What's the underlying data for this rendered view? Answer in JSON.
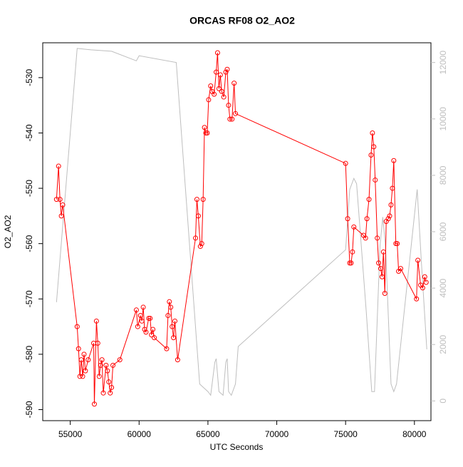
{
  "chart_data": {
    "type": "line",
    "title": "ORCAS RF08 O2_AO2",
    "xlabel": "UTC Seconds",
    "ylabel": "O2_AO2",
    "xlim": [
      53000,
      81200
    ],
    "xticks": [
      55000,
      60000,
      65000,
      70000,
      75000,
      80000
    ],
    "ylim": [
      -592,
      -523.7
    ],
    "yticks": [
      -590,
      -580,
      -570,
      -560,
      -550,
      -540,
      -530
    ],
    "y2lim": [
      -700,
      12700
    ],
    "y2ticks": [
      0,
      2000,
      4000,
      6000,
      8000,
      10000,
      12000
    ],
    "y2color": "#bebebe",
    "series": [
      {
        "color": "#bebebe",
        "axis": "y2",
        "markers": false,
        "x": [
          54000,
          55500,
          56500,
          58000,
          59800,
          60000,
          62700,
          64400,
          65000,
          65200,
          65500,
          65600,
          65800,
          66100,
          66300,
          66400,
          66500,
          66700,
          67000,
          67200,
          75000,
          75300,
          75600,
          75800,
          76500,
          76900,
          77100,
          77500,
          77700,
          77900,
          78300,
          78500,
          78700,
          80200,
          80500,
          80900
        ],
        "values": [
          3500,
          12500,
          12450,
          12400,
          12060,
          12240,
          12000,
          600,
          330,
          200,
          1370,
          1500,
          330,
          200,
          1370,
          1500,
          330,
          200,
          600,
          1930,
          5360,
          7500,
          7890,
          7700,
          3170,
          330,
          330,
          5490,
          6520,
          5490,
          600,
          330,
          600,
          7500,
          4970,
          1830
        ]
      },
      {
        "color": "#ff0000",
        "markers": true,
        "x": [
          54000,
          54150,
          54250,
          54350,
          54450,
          55500,
          55600,
          55700,
          55800,
          55900,
          56000,
          56100,
          56300,
          56700,
          56750,
          56900,
          57000,
          57100,
          57200,
          57300,
          57400,
          57600,
          57700,
          57800,
          57900,
          58000,
          58100,
          58600,
          59800,
          59900,
          60100,
          60200,
          60300,
          60400,
          60500,
          60700,
          60800,
          60900,
          61000,
          61100,
          62000,
          62100,
          62200,
          62300,
          62400,
          62500,
          62600,
          62800,
          64100,
          64200,
          64300,
          64450,
          64550,
          64650,
          64750,
          64850,
          64950,
          65050,
          65200,
          65300,
          65450,
          65600,
          65700,
          65800,
          65900,
          66000,
          66150,
          66300,
          66400,
          66500,
          66600,
          66750,
          66900,
          67000,
          75000,
          75150,
          75300,
          75400,
          75500,
          75600,
          76300,
          76450,
          76550,
          76700,
          76850,
          76950,
          77050,
          77150,
          77300,
          77400,
          77550,
          77650,
          77750,
          77850,
          77950,
          78100,
          78200,
          78300,
          78400,
          78500,
          78650,
          78750,
          78850,
          79000,
          80150,
          80250,
          80450,
          80600,
          80750,
          80850
        ],
        "values": [
          -552,
          -546,
          -552,
          -555,
          -553,
          -575,
          -579,
          -584,
          -581,
          -584,
          -580,
          -583,
          -581,
          -578,
          -589,
          -574,
          -578,
          -584,
          -582,
          -581,
          -587,
          -582,
          -583,
          -585,
          -587,
          -586,
          -582,
          -581,
          -572,
          -575,
          -573,
          -574,
          -571.5,
          -575.5,
          -576,
          -573.5,
          -573.5,
          -576.5,
          -575.5,
          -577,
          -579,
          -573,
          -570.5,
          -571.5,
          -575,
          -577,
          -574,
          -581,
          -559,
          -552,
          -555,
          -560.5,
          -560,
          -552,
          -539,
          -540,
          -540,
          -534,
          -531.5,
          -532.5,
          -533,
          -529,
          -525.5,
          -532,
          -529.5,
          -532.5,
          -533.5,
          -529,
          -528.5,
          -535,
          -537.5,
          -537.5,
          -531,
          -536.5,
          -545.5,
          -555.5,
          -563.5,
          -563.5,
          -561.5,
          -557,
          -558.5,
          -559,
          -555.5,
          -552,
          -544,
          -540,
          -542.5,
          -548.5,
          -559,
          -563.5,
          -564.5,
          -566,
          -561.5,
          -569,
          -556,
          -555.5,
          -555,
          -553,
          -550,
          -545,
          -560,
          -560,
          -565,
          -564.5,
          -570,
          -563,
          -567.5,
          -568,
          -566,
          -567
        ]
      }
    ]
  }
}
